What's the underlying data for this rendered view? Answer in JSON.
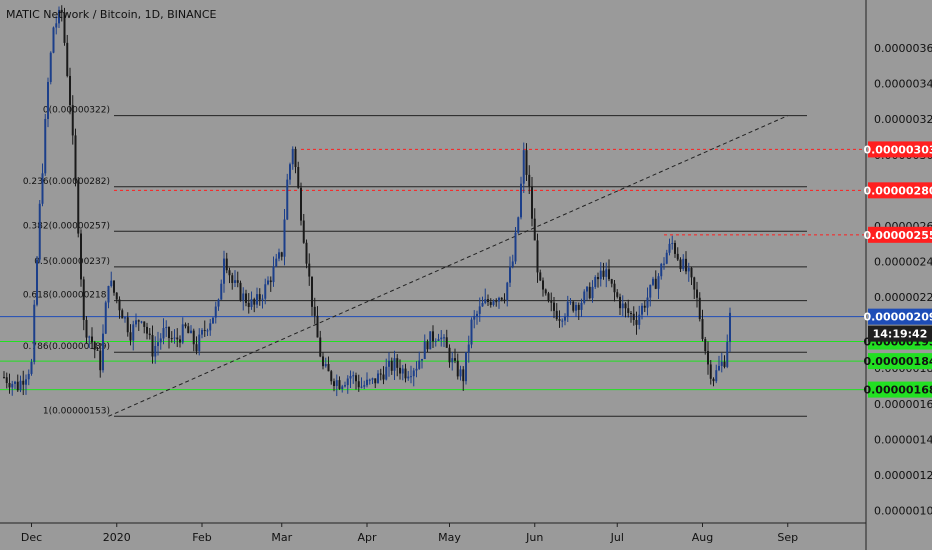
{
  "title": "MATIC Network / Bitcoin, 1D, BINANCE",
  "colors": {
    "background": "#9a9a9a",
    "up_candle": "#1c3f8a",
    "down_candle": "#1a1a1a",
    "fib_line": "#222222",
    "resistance": "#ff1f1f",
    "support": "#22e022",
    "trendline": "#222222",
    "current_price": "#1e4db7"
  },
  "chart_data": {
    "type": "candlestick",
    "symbol": "MATIC Network / Bitcoin",
    "interval": "1D",
    "exchange": "BINANCE",
    "y_range": [
      9.3e-07,
      3.87e-06
    ],
    "y_ticks": [
      "0.00000360",
      "0.00000340",
      "0.00000320",
      "0.00000300",
      "0.00000280",
      "0.00000260",
      "0.00000240",
      "0.00000220",
      "0.00000200",
      "0.00000180",
      "0.00000160",
      "0.00000140",
      "0.00000120",
      "0.00000100"
    ],
    "x_labels": [
      {
        "label": "Dec",
        "day": 10
      },
      {
        "label": "2020",
        "day": 41
      },
      {
        "label": "Feb",
        "day": 72
      },
      {
        "label": "Mar",
        "day": 101
      },
      {
        "label": "Apr",
        "day": 132
      },
      {
        "label": "May",
        "day": 162
      },
      {
        "label": "Jun",
        "day": 193
      },
      {
        "label": "Jul",
        "day": 223
      },
      {
        "label": "Aug",
        "day": 254
      },
      {
        "label": "Sep",
        "day": 285
      }
    ],
    "last_day": 264,
    "fib_levels": [
      {
        "label": "0(0.00000322)",
        "value": 3.22e-06
      },
      {
        "label": "0.236(0.00000282)",
        "value": 2.82e-06
      },
      {
        "label": "0.382(0.00000257)",
        "value": 2.57e-06
      },
      {
        "label": "0.5(0.00000237)",
        "value": 2.37e-06
      },
      {
        "label": "0.618(0.00000218)",
        "value": 2.18e-06
      },
      {
        "label": "0.786(0.00000189)",
        "value": 1.89e-06
      },
      {
        "label": "1(0.00000153)",
        "value": 1.53e-06
      }
    ],
    "resistance_levels": [
      {
        "label": "0.00000303",
        "value": 3.03e-06
      },
      {
        "label": "0.00000280",
        "value": 2.8e-06
      },
      {
        "label": "0.00000255",
        "value": 2.55e-06
      }
    ],
    "support_levels": [
      {
        "label": "0.00000195",
        "value": 1.95e-06
      },
      {
        "label": "0.00000184",
        "value": 1.84e-06
      },
      {
        "label": "0.00000168",
        "value": 1.68e-06
      }
    ],
    "current_price": {
      "label": "0.00000209",
      "value": 2.09e-06,
      "countdown": "14:19:42"
    },
    "trendline": {
      "from": {
        "day": 38,
        "value": 1.53e-06
      },
      "to": {
        "day": 285,
        "value": 3.22e-06
      }
    },
    "price_path": [
      [
        0,
        1.75e-06
      ],
      [
        5,
        1.7e-06
      ],
      [
        10,
        1.82e-06
      ],
      [
        13,
        2.7e-06
      ],
      [
        16,
        3.4e-06
      ],
      [
        18,
        3.72e-06
      ],
      [
        21,
        3.8e-06
      ],
      [
        24,
        3.3e-06
      ],
      [
        27,
        2.6e-06
      ],
      [
        29,
        2.05e-06
      ],
      [
        32,
        1.95e-06
      ],
      [
        35,
        1.82e-06
      ],
      [
        38,
        2.3e-06
      ],
      [
        42,
        2.15e-06
      ],
      [
        46,
        2e-06
      ],
      [
        50,
        2.1e-06
      ],
      [
        54,
        1.9e-06
      ],
      [
        58,
        2e-06
      ],
      [
        62,
        1.95e-06
      ],
      [
        66,
        2.02e-06
      ],
      [
        70,
        1.92e-06
      ],
      [
        74,
        2.05e-06
      ],
      [
        78,
        2.15e-06
      ],
      [
        80,
        2.45e-06
      ],
      [
        83,
        2.28e-06
      ],
      [
        87,
        2.2e-06
      ],
      [
        91,
        2.15e-06
      ],
      [
        95,
        2.25e-06
      ],
      [
        98,
        2.35e-06
      ],
      [
        101,
        2.45e-06
      ],
      [
        103,
        2.85e-06
      ],
      [
        105,
        3.05e-06
      ],
      [
        107,
        2.8e-06
      ],
      [
        109,
        2.55e-06
      ],
      [
        111,
        2.3e-06
      ],
      [
        113,
        2.05e-06
      ],
      [
        116,
        1.8e-06
      ],
      [
        119,
        1.75e-06
      ],
      [
        122,
        1.72e-06
      ],
      [
        126,
        1.76e-06
      ],
      [
        130,
        1.7e-06
      ],
      [
        134,
        1.72e-06
      ],
      [
        138,
        1.78e-06
      ],
      [
        142,
        1.82e-06
      ],
      [
        146,
        1.78e-06
      ],
      [
        150,
        1.82e-06
      ],
      [
        154,
        1.95e-06
      ],
      [
        158,
        2e-06
      ],
      [
        161,
        1.9e-06
      ],
      [
        164,
        1.8e-06
      ],
      [
        167,
        1.75e-06
      ],
      [
        170,
        2.05e-06
      ],
      [
        174,
        2.15e-06
      ],
      [
        178,
        2.2e-06
      ],
      [
        182,
        2.22e-06
      ],
      [
        185,
        2.4e-06
      ],
      [
        187,
        2.65e-06
      ],
      [
        189,
        3e-06
      ],
      [
        191,
        2.8e-06
      ],
      [
        193,
        2.5e-06
      ],
      [
        195,
        2.25e-06
      ],
      [
        198,
        2.15e-06
      ],
      [
        202,
        2.1e-06
      ],
      [
        206,
        2.15e-06
      ],
      [
        210,
        2.18e-06
      ],
      [
        214,
        2.25e-06
      ],
      [
        218,
        2.35e-06
      ],
      [
        222,
        2.22e-06
      ],
      [
        226,
        2.12e-06
      ],
      [
        230,
        2.08e-06
      ],
      [
        234,
        2.2e-06
      ],
      [
        238,
        2.32e-06
      ],
      [
        241,
        2.45e-06
      ],
      [
        243,
        2.5e-06
      ],
      [
        246,
        2.4e-06
      ],
      [
        249,
        2.32e-06
      ],
      [
        252,
        2.18e-06
      ],
      [
        254,
        2e-06
      ],
      [
        256,
        1.82e-06
      ],
      [
        258,
        1.75e-06
      ],
      [
        260,
        1.8e-06
      ],
      [
        262,
        1.85e-06
      ],
      [
        264,
        2.09e-06
      ]
    ]
  }
}
